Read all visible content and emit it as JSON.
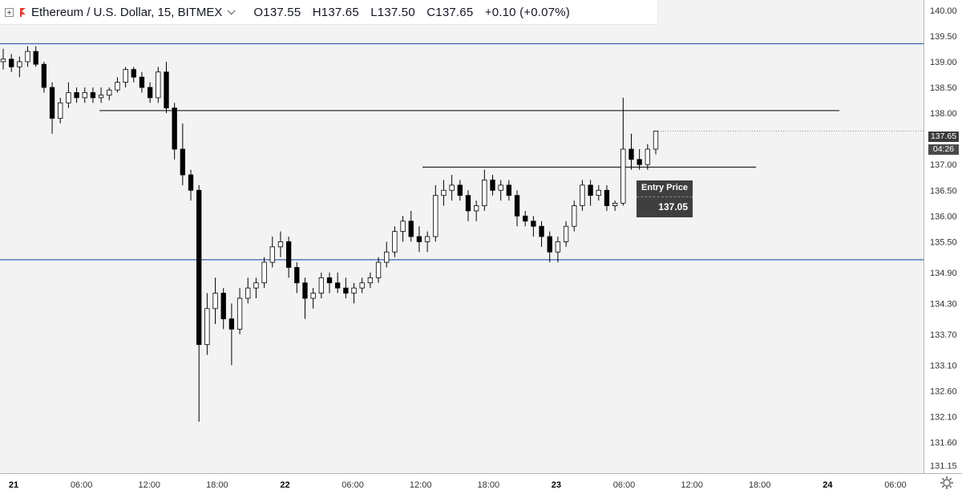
{
  "header": {
    "symbol": "Ethereum / U.S. Dollar, 15, BITMEX",
    "open": "O137.55",
    "high": "H137.65",
    "low": "L137.50",
    "close": "C137.65",
    "change": "+0.10 (+0.07%)"
  },
  "annotation": {
    "title": "Entry Price",
    "value": "137.05"
  },
  "price_labels": {
    "last_price": "137.65",
    "countdown": "04:26"
  },
  "colors": {
    "candle": "#000000",
    "support_resistance": "#3a5fb5",
    "level_line": "#333333",
    "background": "#f3f3f3"
  },
  "chart_data": {
    "type": "candlestick",
    "y_ticks": [
      "140.00",
      "139.50",
      "139.00",
      "138.50",
      "138.00",
      "137.65",
      "137.00",
      "136.50",
      "136.00",
      "135.50",
      "134.90",
      "134.30",
      "133.70",
      "133.10",
      "132.60",
      "132.10",
      "131.60",
      "131.15"
    ],
    "y_tick_values": [
      140.0,
      139.5,
      139.0,
      138.5,
      138.0,
      137.65,
      137.0,
      136.5,
      136.0,
      135.5,
      134.9,
      134.3,
      133.7,
      133.1,
      132.6,
      132.1,
      131.6,
      131.15
    ],
    "y_range": [
      131.0,
      140.2
    ],
    "x_ticks": [
      "21",
      "06:00",
      "12:00",
      "18:00",
      "22",
      "06:00",
      "12:00",
      "18:00",
      "23",
      "06:00",
      "12:00",
      "18:00",
      "24",
      "06:00"
    ],
    "horizontal_lines": [
      {
        "price": 139.35,
        "style": "blue",
        "x_from_bar": -10,
        "x_to_bar": 1200
      },
      {
        "price": 135.15,
        "style": "blue",
        "x_from_bar": -10,
        "x_to_bar": 1200
      },
      {
        "price": 138.05,
        "style": "dark",
        "x_from_bar": 11.8,
        "x_to_bar": 102.5
      },
      {
        "price": 136.95,
        "style": "dark",
        "x_from_bar": 51.4,
        "x_to_bar": 92.3
      }
    ],
    "candles_ohlc": [
      [
        139.0,
        139.25,
        138.85,
        139.05
      ],
      [
        139.05,
        139.15,
        138.8,
        138.9
      ],
      [
        138.9,
        139.1,
        138.7,
        139.0
      ],
      [
        139.0,
        139.3,
        138.9,
        139.2
      ],
      [
        139.2,
        139.3,
        138.9,
        138.95
      ],
      [
        138.95,
        139.0,
        138.4,
        138.5
      ],
      [
        138.5,
        138.6,
        137.6,
        137.9
      ],
      [
        137.9,
        138.3,
        137.8,
        138.2
      ],
      [
        138.2,
        138.6,
        138.1,
        138.4
      ],
      [
        138.4,
        138.5,
        138.2,
        138.3
      ],
      [
        138.3,
        138.5,
        138.2,
        138.4
      ],
      [
        138.4,
        138.5,
        138.2,
        138.3
      ],
      [
        138.3,
        138.5,
        138.2,
        138.35
      ],
      [
        138.35,
        138.5,
        138.25,
        138.45
      ],
      [
        138.45,
        138.7,
        138.4,
        138.6
      ],
      [
        138.6,
        138.9,
        138.5,
        138.85
      ],
      [
        138.85,
        138.9,
        138.6,
        138.7
      ],
      [
        138.7,
        138.8,
        138.4,
        138.5
      ],
      [
        138.5,
        138.6,
        138.2,
        138.3
      ],
      [
        138.3,
        138.9,
        138.2,
        138.8
      ],
      [
        138.8,
        139.0,
        138.0,
        138.1
      ],
      [
        138.1,
        138.2,
        137.1,
        137.3
      ],
      [
        137.3,
        137.8,
        136.6,
        136.8
      ],
      [
        136.8,
        136.9,
        136.3,
        136.5
      ],
      [
        136.5,
        136.6,
        132.0,
        133.5
      ],
      [
        133.5,
        134.5,
        133.3,
        134.2
      ],
      [
        134.2,
        134.8,
        133.9,
        134.5
      ],
      [
        134.5,
        134.6,
        133.8,
        134.0
      ],
      [
        134.0,
        134.3,
        133.1,
        133.8
      ],
      [
        133.8,
        134.6,
        133.7,
        134.4
      ],
      [
        134.4,
        134.8,
        134.3,
        134.6
      ],
      [
        134.6,
        134.8,
        134.4,
        134.7
      ],
      [
        134.7,
        135.2,
        134.6,
        135.1
      ],
      [
        135.1,
        135.6,
        135.0,
        135.4
      ],
      [
        135.4,
        135.7,
        135.2,
        135.5
      ],
      [
        135.5,
        135.6,
        134.8,
        135.0
      ],
      [
        135.0,
        135.1,
        134.5,
        134.7
      ],
      [
        134.7,
        134.8,
        134.0,
        134.4
      ],
      [
        134.4,
        134.6,
        134.2,
        134.5
      ],
      [
        134.5,
        134.9,
        134.4,
        134.8
      ],
      [
        134.8,
        134.9,
        134.5,
        134.7
      ],
      [
        134.7,
        134.9,
        134.5,
        134.6
      ],
      [
        134.6,
        134.8,
        134.4,
        134.5
      ],
      [
        134.5,
        134.7,
        134.3,
        134.6
      ],
      [
        134.6,
        134.8,
        134.5,
        134.7
      ],
      [
        134.7,
        134.9,
        134.6,
        134.8
      ],
      [
        134.8,
        135.2,
        134.7,
        135.1
      ],
      [
        135.1,
        135.5,
        135.0,
        135.3
      ],
      [
        135.3,
        135.8,
        135.2,
        135.7
      ],
      [
        135.7,
        136.0,
        135.5,
        135.9
      ],
      [
        135.9,
        136.1,
        135.5,
        135.6
      ],
      [
        135.6,
        135.8,
        135.3,
        135.5
      ],
      [
        135.5,
        135.7,
        135.3,
        135.6
      ],
      [
        135.6,
        136.6,
        135.5,
        136.4
      ],
      [
        136.4,
        136.7,
        136.2,
        136.5
      ],
      [
        136.5,
        136.8,
        136.3,
        136.6
      ],
      [
        136.6,
        136.7,
        136.3,
        136.4
      ],
      [
        136.4,
        136.5,
        135.9,
        136.1
      ],
      [
        136.1,
        136.3,
        135.9,
        136.2
      ],
      [
        136.2,
        136.9,
        136.1,
        136.7
      ],
      [
        136.7,
        136.8,
        136.4,
        136.5
      ],
      [
        136.5,
        136.7,
        136.3,
        136.6
      ],
      [
        136.6,
        136.7,
        136.3,
        136.4
      ],
      [
        136.4,
        136.5,
        135.8,
        136.0
      ],
      [
        136.0,
        136.1,
        135.8,
        135.9
      ],
      [
        135.9,
        136.0,
        135.6,
        135.8
      ],
      [
        135.8,
        135.9,
        135.4,
        135.6
      ],
      [
        135.6,
        135.7,
        135.1,
        135.3
      ],
      [
        135.3,
        135.6,
        135.1,
        135.5
      ],
      [
        135.5,
        135.9,
        135.4,
        135.8
      ],
      [
        135.8,
        136.3,
        135.7,
        136.2
      ],
      [
        136.2,
        136.7,
        136.1,
        136.6
      ],
      [
        136.6,
        136.7,
        136.2,
        136.4
      ],
      [
        136.4,
        136.6,
        136.3,
        136.5
      ],
      [
        136.5,
        136.6,
        136.1,
        136.2
      ],
      [
        136.2,
        136.3,
        136.1,
        136.25
      ],
      [
        136.25,
        138.3,
        136.2,
        137.3
      ],
      [
        137.3,
        137.6,
        136.9,
        137.1
      ],
      [
        137.1,
        137.3,
        136.9,
        137.0
      ],
      [
        137.0,
        137.4,
        136.9,
        137.3
      ],
      [
        137.3,
        137.65,
        137.2,
        137.65
      ]
    ]
  }
}
